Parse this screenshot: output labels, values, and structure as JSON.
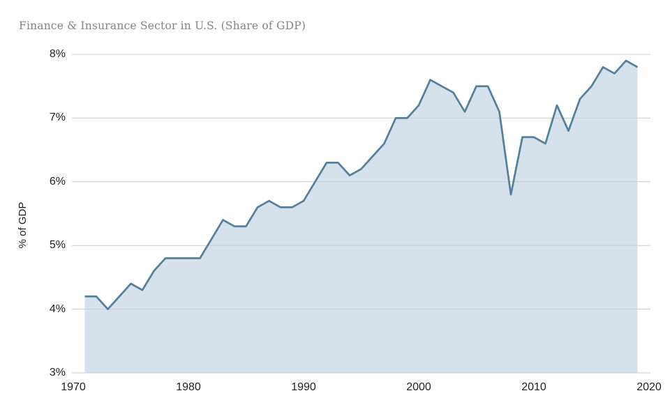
{
  "header": {
    "title": "Finance & Insurance Sector in U.S. (Share of GDP)"
  },
  "colors": {
    "line": "#55809b",
    "fill": "#d6e2eb",
    "grid": "#cccccc",
    "title_text": "#848484",
    "tick_text": "#212121",
    "background": "#ffffff"
  },
  "chart_data": {
    "type": "area",
    "title": "Finance & Insurance Sector in U.S. (Share of GDP)",
    "xlabel": "",
    "ylabel": "% of GDP",
    "xlim": [
      1970,
      2020
    ],
    "ylim": [
      3,
      8
    ],
    "grid": "horizontal",
    "legend": "none",
    "x_ticks": [
      {
        "value": 1970,
        "label": "1970"
      },
      {
        "value": 1980,
        "label": "1980"
      },
      {
        "value": 1990,
        "label": "1990"
      },
      {
        "value": 2000,
        "label": "2000"
      },
      {
        "value": 2010,
        "label": "2010"
      },
      {
        "value": 2020,
        "label": "2020"
      }
    ],
    "y_ticks": [
      {
        "value": 8,
        "label": "8%"
      },
      {
        "value": 7,
        "label": "7%"
      },
      {
        "value": 6,
        "label": "6%"
      },
      {
        "value": 5,
        "label": "5%"
      },
      {
        "value": 4,
        "label": "4%"
      },
      {
        "value": 3,
        "label": "3%"
      }
    ],
    "x": [
      1971,
      1972,
      1973,
      1974,
      1975,
      1976,
      1977,
      1978,
      1979,
      1980,
      1981,
      1982,
      1983,
      1984,
      1985,
      1986,
      1987,
      1988,
      1989,
      1990,
      1991,
      1992,
      1993,
      1994,
      1995,
      1996,
      1997,
      1998,
      1999,
      2000,
      2001,
      2002,
      2003,
      2004,
      2005,
      2006,
      2007,
      2008,
      2009,
      2010,
      2011,
      2012,
      2013,
      2014,
      2015,
      2016,
      2017,
      2018,
      2019
    ],
    "values": [
      4.2,
      4.2,
      4.0,
      4.2,
      4.4,
      4.3,
      4.6,
      4.8,
      4.8,
      4.8,
      4.8,
      5.1,
      5.4,
      5.3,
      5.3,
      5.6,
      5.7,
      5.6,
      5.6,
      5.7,
      6.0,
      6.3,
      6.3,
      6.1,
      6.2,
      6.4,
      6.6,
      7.0,
      7.0,
      7.2,
      7.6,
      7.5,
      7.4,
      7.1,
      7.5,
      7.5,
      7.1,
      5.8,
      6.7,
      6.7,
      6.6,
      7.2,
      6.8,
      7.3,
      7.5,
      7.8,
      7.7,
      7.9,
      7.8
    ]
  }
}
